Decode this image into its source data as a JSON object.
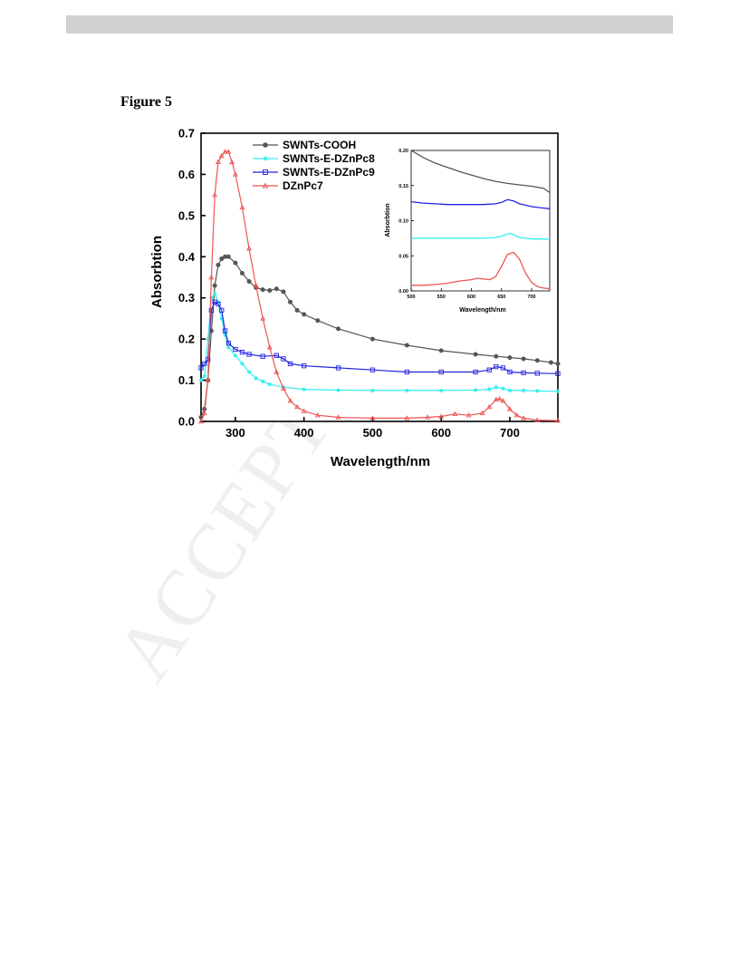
{
  "figure_label": "Figure 5",
  "watermark": "ACCEPTED",
  "colors": {
    "SWNTs-COOH": "#555555",
    "SWNTs-E-DZnPc8": "#33eeee",
    "SWNTs-E-DZnPc9": "#2222dd",
    "DZnPc7": "#ee5555"
  },
  "chart_data": [
    {
      "type": "line",
      "title": "",
      "xlabel": "Wavelength/nm",
      "ylabel": "Absorbtion",
      "xlim": [
        250,
        770
      ],
      "ylim": [
        0.0,
        0.7
      ],
      "xticks": [
        "300",
        "400",
        "500",
        "600",
        "700"
      ],
      "yticks": [
        "0.0",
        "0.1",
        "0.2",
        "0.3",
        "0.4",
        "0.5",
        "0.6",
        "0.7"
      ],
      "legend_position": "top-left",
      "series": [
        {
          "name": "SWNTs-COOH",
          "x": [
            250,
            255,
            260,
            265,
            270,
            275,
            280,
            285,
            290,
            300,
            310,
            320,
            330,
            340,
            350,
            360,
            370,
            380,
            390,
            400,
            420,
            450,
            500,
            550,
            600,
            650,
            680,
            700,
            720,
            740,
            760,
            770
          ],
          "y": [
            0.01,
            0.03,
            0.1,
            0.22,
            0.33,
            0.38,
            0.395,
            0.4,
            0.4,
            0.385,
            0.36,
            0.34,
            0.325,
            0.32,
            0.318,
            0.322,
            0.315,
            0.29,
            0.27,
            0.26,
            0.245,
            0.225,
            0.2,
            0.185,
            0.172,
            0.163,
            0.158,
            0.155,
            0.152,
            0.148,
            0.143,
            0.14
          ]
        },
        {
          "name": "SWNTs-E-DZnPc8",
          "x": [
            250,
            255,
            260,
            265,
            270,
            275,
            280,
            285,
            290,
            300,
            310,
            320,
            330,
            340,
            350,
            370,
            400,
            450,
            500,
            550,
            600,
            650,
            670,
            680,
            690,
            700,
            720,
            740,
            770
          ],
          "y": [
            0.1,
            0.11,
            0.2,
            0.3,
            0.31,
            0.29,
            0.25,
            0.21,
            0.18,
            0.16,
            0.14,
            0.12,
            0.105,
            0.097,
            0.09,
            0.083,
            0.078,
            0.076,
            0.075,
            0.075,
            0.075,
            0.076,
            0.078,
            0.083,
            0.08,
            0.075,
            0.075,
            0.074,
            0.073
          ]
        },
        {
          "name": "SWNTs-E-DZnPc9",
          "x": [
            250,
            255,
            260,
            265,
            270,
            275,
            280,
            285,
            290,
            300,
            310,
            320,
            340,
            360,
            370,
            380,
            400,
            450,
            500,
            550,
            600,
            650,
            670,
            680,
            690,
            700,
            720,
            740,
            770
          ],
          "y": [
            0.13,
            0.14,
            0.15,
            0.27,
            0.29,
            0.285,
            0.27,
            0.22,
            0.19,
            0.175,
            0.168,
            0.163,
            0.158,
            0.16,
            0.152,
            0.14,
            0.135,
            0.13,
            0.125,
            0.12,
            0.12,
            0.12,
            0.125,
            0.133,
            0.13,
            0.12,
            0.118,
            0.117,
            0.116
          ]
        },
        {
          "name": "DZnPc7",
          "x": [
            250,
            255,
            260,
            265,
            270,
            275,
            280,
            285,
            290,
            295,
            300,
            310,
            320,
            330,
            340,
            350,
            360,
            370,
            380,
            390,
            400,
            420,
            450,
            500,
            550,
            580,
            600,
            620,
            640,
            660,
            670,
            680,
            685,
            690,
            700,
            710,
            720,
            740,
            770
          ],
          "y": [
            0.0,
            0.02,
            0.1,
            0.35,
            0.55,
            0.63,
            0.645,
            0.655,
            0.655,
            0.63,
            0.6,
            0.52,
            0.42,
            0.33,
            0.25,
            0.18,
            0.12,
            0.08,
            0.05,
            0.035,
            0.025,
            0.015,
            0.01,
            0.008,
            0.008,
            0.01,
            0.012,
            0.018,
            0.015,
            0.02,
            0.035,
            0.053,
            0.055,
            0.05,
            0.03,
            0.015,
            0.008,
            0.003,
            0.002
          ]
        }
      ]
    },
    {
      "type": "line",
      "title": "",
      "xlabel": "Wavelength/nm",
      "ylabel": "Absorbtion",
      "xlim": [
        500,
        730
      ],
      "ylim": [
        0.0,
        0.2
      ],
      "xticks": [
        "500",
        "550",
        "600",
        "650",
        "700"
      ],
      "yticks": [
        "0.00",
        "0.05",
        "0.10",
        "0.15",
        "0.20"
      ],
      "series": [
        {
          "name": "SWNTs-COOH",
          "x": [
            500,
            520,
            540,
            560,
            580,
            600,
            620,
            640,
            660,
            680,
            700,
            720,
            730
          ],
          "y": [
            0.2,
            0.19,
            0.182,
            0.176,
            0.17,
            0.165,
            0.16,
            0.156,
            0.153,
            0.151,
            0.149,
            0.146,
            0.14
          ]
        },
        {
          "name": "SWNTs-E-DZnPc9",
          "x": [
            500,
            520,
            540,
            560,
            580,
            600,
            620,
            640,
            650,
            660,
            670,
            680,
            690,
            700,
            720,
            730
          ],
          "y": [
            0.127,
            0.125,
            0.124,
            0.123,
            0.123,
            0.123,
            0.123,
            0.124,
            0.126,
            0.13,
            0.128,
            0.124,
            0.122,
            0.12,
            0.118,
            0.117
          ]
        },
        {
          "name": "SWNTs-E-DZnPc8",
          "x": [
            500,
            520,
            540,
            560,
            580,
            600,
            620,
            640,
            650,
            660,
            665,
            670,
            680,
            690,
            700,
            720,
            730
          ],
          "y": [
            0.075,
            0.075,
            0.075,
            0.075,
            0.075,
            0.075,
            0.075,
            0.076,
            0.078,
            0.081,
            0.082,
            0.08,
            0.076,
            0.075,
            0.074,
            0.074,
            0.073
          ]
        },
        {
          "name": "DZnPc7",
          "x": [
            500,
            520,
            540,
            560,
            580,
            600,
            610,
            620,
            630,
            640,
            650,
            660,
            670,
            680,
            690,
            700,
            710,
            720,
            730
          ],
          "y": [
            0.008,
            0.008,
            0.009,
            0.011,
            0.014,
            0.016,
            0.018,
            0.017,
            0.016,
            0.02,
            0.035,
            0.052,
            0.055,
            0.045,
            0.025,
            0.012,
            0.006,
            0.004,
            0.003
          ]
        }
      ]
    }
  ]
}
